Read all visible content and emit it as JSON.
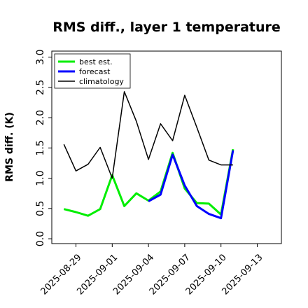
{
  "chart_data": {
    "type": "line",
    "title": "RMS diff., layer 1 temperature",
    "xlabel": "",
    "ylabel": "RMS diff. (K)",
    "x_start": "2025-08-27",
    "xlim": [
      "2025-08-27",
      "2025-09-15"
    ],
    "ylim": [
      -0.08,
      3.1
    ],
    "yticks": [
      "0.0",
      "0.5",
      "1.0",
      "1.5",
      "2.0",
      "2.5",
      "3.0"
    ],
    "xticks": [
      {
        "label": "2025-08-29",
        "color": "#000000"
      },
      {
        "label": "2025-09-01",
        "color": "#000000"
      },
      {
        "label": "2025-09-04",
        "color": "#2e8b2e"
      },
      {
        "label": "2025-09-07",
        "color": "#000000"
      },
      {
        "label": "2025-09-10",
        "color": "#000000"
      },
      {
        "label": "2025-09-13",
        "color": "#000000"
      }
    ],
    "legend_position": "top-left",
    "grid": false,
    "series": [
      {
        "name": "best est.",
        "color": "#00ee00",
        "x": [
          "2025-08-28",
          "2025-08-29",
          "2025-08-30",
          "2025-08-31",
          "2025-09-01",
          "2025-09-02",
          "2025-09-03",
          "2025-09-04",
          "2025-09-05",
          "2025-09-06",
          "2025-09-07",
          "2025-09-08",
          "2025-09-09",
          "2025-09-10",
          "2025-09-11"
        ],
        "y": [
          0.49,
          0.44,
          0.38,
          0.49,
          1.05,
          0.54,
          0.75,
          0.63,
          0.78,
          1.42,
          0.83,
          0.59,
          0.58,
          0.4,
          1.48
        ]
      },
      {
        "name": "forecast",
        "color": "#0000ff",
        "x": [
          "2025-09-04",
          "2025-09-05",
          "2025-09-06",
          "2025-09-07",
          "2025-09-08",
          "2025-09-09",
          "2025-09-10",
          "2025-09-11"
        ],
        "y": [
          0.62,
          0.73,
          1.39,
          0.88,
          0.54,
          0.41,
          0.34,
          1.46
        ]
      },
      {
        "name": "climatology",
        "color": "#000000",
        "x": [
          "2025-08-28",
          "2025-08-29",
          "2025-08-30",
          "2025-08-31",
          "2025-09-01",
          "2025-09-02",
          "2025-09-03",
          "2025-09-04",
          "2025-09-05",
          "2025-09-06",
          "2025-09-07",
          "2025-09-08",
          "2025-09-09",
          "2025-09-10",
          "2025-09-11"
        ],
        "y": [
          1.56,
          1.12,
          1.23,
          1.51,
          1.0,
          2.43,
          1.94,
          1.31,
          1.9,
          1.62,
          2.37,
          1.84,
          1.3,
          1.22,
          1.22
        ]
      }
    ]
  }
}
